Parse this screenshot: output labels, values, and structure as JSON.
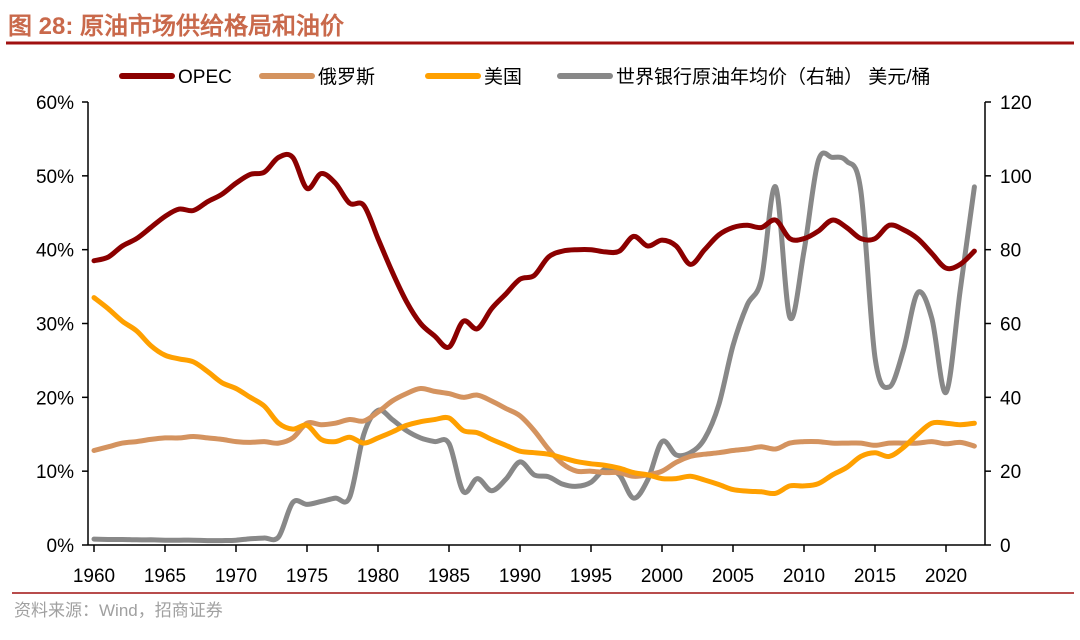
{
  "header": {
    "title": "图 28:  原油市场供给格局和油价"
  },
  "footer": {
    "source": "资料来源：Wind，招商证券"
  },
  "colors": {
    "title": "#c9694b",
    "rule": "#a01010",
    "opec": "#8b0000",
    "russia": "#d4935f",
    "us": "#ffa000",
    "price": "#888888",
    "source": "#a0a0a0"
  },
  "chart_data": {
    "type": "line",
    "title": "原油市场供给格局和油价",
    "xlabel": "",
    "ylabel": "",
    "y2label": "美元/桶",
    "x": [
      1960,
      1961,
      1962,
      1963,
      1964,
      1965,
      1966,
      1967,
      1968,
      1969,
      1970,
      1971,
      1972,
      1973,
      1974,
      1975,
      1976,
      1977,
      1978,
      1979,
      1980,
      1981,
      1982,
      1983,
      1984,
      1985,
      1986,
      1987,
      1988,
      1989,
      1990,
      1991,
      1992,
      1993,
      1994,
      1995,
      1996,
      1997,
      1998,
      1999,
      2000,
      2001,
      2002,
      2003,
      2004,
      2005,
      2006,
      2007,
      2008,
      2009,
      2010,
      2011,
      2012,
      2013,
      2014,
      2015,
      2016,
      2017,
      2018,
      2019,
      2020,
      2021,
      2022
    ],
    "xlim": [
      1959.5,
      2022.7
    ],
    "ylim": [
      0,
      60
    ],
    "y2lim": [
      0,
      120
    ],
    "x_ticks": [
      "1960",
      "1965",
      "1970",
      "1975",
      "1980",
      "1985",
      "1990",
      "1995",
      "2000",
      "2005",
      "2010",
      "2015",
      "2020"
    ],
    "y_ticks": [
      "0%",
      "10%",
      "20%",
      "30%",
      "40%",
      "50%",
      "60%"
    ],
    "y2_ticks": [
      "0",
      "20",
      "40",
      "60",
      "80",
      "100",
      "120"
    ],
    "legend_position": "top",
    "series": [
      {
        "name": "OPEC",
        "axis": "left",
        "color_key": "opec",
        "values": [
          38.5,
          39,
          40.5,
          41.5,
          43,
          44.5,
          45.5,
          45.3,
          46.5,
          47.5,
          49,
          50.2,
          50.5,
          52.5,
          52.5,
          48.3,
          50.3,
          49,
          46.3,
          46,
          41.5,
          37,
          33,
          30,
          28.3,
          26.8,
          30.3,
          29.3,
          32,
          34,
          36,
          36.5,
          39,
          39.8,
          40,
          40,
          39.7,
          39.8,
          41.8,
          40.5,
          41.3,
          40.5,
          38,
          40,
          42,
          43,
          43.3,
          43,
          44,
          41.5,
          41.5,
          42.5,
          44,
          43,
          41.5,
          41.5,
          43.3,
          42.7,
          41.5,
          39.5,
          37.5,
          38,
          39.8
        ]
      },
      {
        "name": "俄罗斯",
        "axis": "left",
        "color_key": "russia",
        "values": [
          12.8,
          13.3,
          13.8,
          14,
          14.3,
          14.5,
          14.5,
          14.7,
          14.5,
          14.3,
          14,
          13.9,
          14,
          13.8,
          14.5,
          16.5,
          16.3,
          16.5,
          17,
          16.8,
          18,
          19.5,
          20.5,
          21.2,
          20.8,
          20.5,
          20,
          20.3,
          19.5,
          18.5,
          17.5,
          15.5,
          13,
          11,
          10,
          10,
          9.8,
          9.8,
          9.3,
          9.5,
          10,
          11.2,
          12,
          12.3,
          12.5,
          12.8,
          13,
          13.3,
          13,
          13.8,
          14,
          14,
          13.8,
          13.8,
          13.8,
          13.5,
          13.8,
          13.8,
          13.8,
          14,
          13.7,
          13.9,
          13.4
        ]
      },
      {
        "name": "美国",
        "axis": "left",
        "color_key": "us",
        "values": [
          33.5,
          32,
          30.3,
          29,
          27,
          25.7,
          25.2,
          24.8,
          23.5,
          22,
          21.2,
          20,
          18.8,
          16.5,
          15.7,
          16.2,
          14.3,
          14,
          14.6,
          13.8,
          14.5,
          15.3,
          16.2,
          16.7,
          17,
          17.2,
          15.5,
          15.2,
          14.3,
          13.5,
          12.7,
          12.5,
          12.3,
          11.8,
          11.3,
          11,
          10.8,
          10.4,
          9.8,
          9.5,
          9,
          9,
          9.3,
          8.8,
          8.2,
          7.5,
          7.3,
          7.2,
          7,
          8,
          8,
          8.3,
          9.5,
          10.5,
          12,
          12.5,
          12,
          13.2,
          15,
          16.5,
          16.5,
          16.3,
          16.5
        ]
      },
      {
        "name": "世界银行原油年均价（右轴） 美元/桶",
        "axis": "right",
        "color_key": "price",
        "values": [
          1.6,
          1.5,
          1.5,
          1.4,
          1.4,
          1.3,
          1.3,
          1.3,
          1.2,
          1.2,
          1.3,
          1.7,
          1.9,
          2.2,
          11.5,
          11,
          11.8,
          12.7,
          12.9,
          30,
          36.5,
          34,
          31,
          29,
          28,
          27.5,
          14.5,
          18,
          14.7,
          17.8,
          22.5,
          19,
          18.5,
          16.5,
          15.9,
          17,
          20.5,
          19,
          12.7,
          17.7,
          28,
          24.4,
          25,
          28.8,
          38,
          54,
          65,
          72,
          97,
          61.7,
          79.6,
          104,
          105,
          104,
          96,
          50.8,
          42.8,
          52.8,
          68.3,
          61.4,
          41.3,
          69,
          97
        ]
      }
    ]
  }
}
